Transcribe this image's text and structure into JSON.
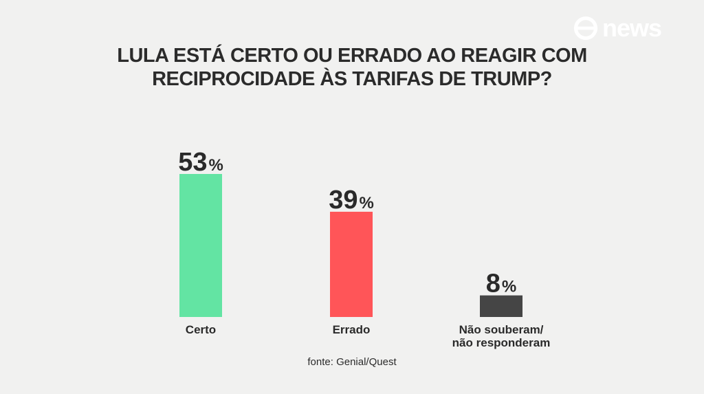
{
  "brand": {
    "logo_text": "news",
    "logo_mark": "globo-icon"
  },
  "colors": {
    "background": "#f1f1f0",
    "text": "#2a2a2a",
    "logo": "#ffffff"
  },
  "chart_data": {
    "type": "bar",
    "title": [
      "LULA ESTÁ CERTO OU ERRADO AO REAGIR COM",
      "RECIPROCIDADE ÀS TARIFAS DE TRUMP?"
    ],
    "categories": [
      "Certo",
      "Errado",
      "Não souberam/\nnão responderam"
    ],
    "category_lines": [
      [
        "Certo"
      ],
      [
        "Errado"
      ],
      [
        "Não souberam/",
        "não responderam"
      ]
    ],
    "values": [
      53,
      39,
      8
    ],
    "value_unit": "%",
    "bar_colors": [
      "#63e4a3",
      "#ff5558",
      "#454545"
    ],
    "ylim": [
      0,
      53
    ],
    "grid": false,
    "legend": "none",
    "xlabel": "",
    "ylabel": ""
  },
  "source": "fonte: Genial/Quest"
}
